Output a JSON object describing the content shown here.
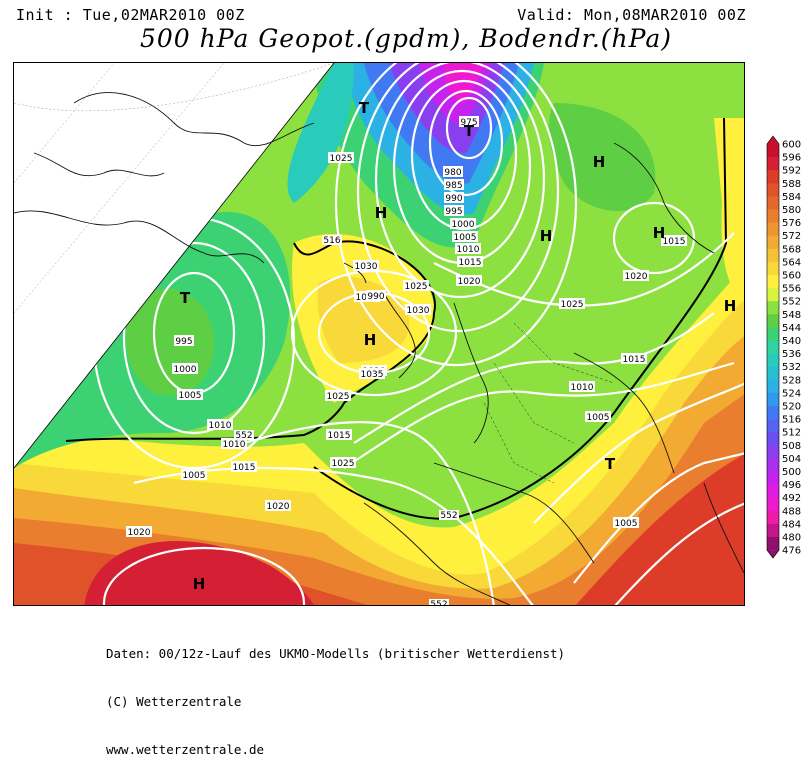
{
  "header": {
    "init": "Init : Tue,02MAR2010 00Z",
    "valid": "Valid: Mon,08MAR2010 00Z",
    "title": "500 hPa Geopot.(gpdm), Bodendr.(hPa)"
  },
  "isobars": [
    "975",
    "980",
    "985",
    "990",
    "995",
    "1000",
    "1005",
    "1010",
    "1015",
    "1020",
    "1025",
    "1030",
    "1035",
    "1020",
    "1025",
    "1015",
    "1010",
    "1005",
    "1020",
    "1025",
    "1030",
    "1035",
    "990",
    "995",
    "1000",
    "1005",
    "1010",
    "1015",
    "1020",
    "1025",
    "1015",
    "1020",
    "1025",
    "1010",
    "1005",
    "1015",
    "1005"
  ],
  "geopot_labels": [
    "516",
    "552",
    "552",
    "552"
  ],
  "pressure_centers": [
    "T",
    "H",
    "T",
    "H",
    "H",
    "H",
    "H",
    "T",
    "T",
    "H",
    "H"
  ],
  "scale": {
    "labels": [
      "600",
      "596",
      "592",
      "588",
      "584",
      "580",
      "576",
      "572",
      "568",
      "564",
      "560",
      "556",
      "552",
      "548",
      "544",
      "540",
      "536",
      "532",
      "528",
      "524",
      "520",
      "516",
      "512",
      "508",
      "504",
      "500",
      "496",
      "492",
      "488",
      "484",
      "480",
      "476"
    ],
    "colors": [
      "#c8102e",
      "#d41f35",
      "#dc3c28",
      "#e0522a",
      "#e4682c",
      "#e97e2f",
      "#ee9431",
      "#f2aa33",
      "#f6c136",
      "#f9d93a",
      "#fff03d",
      "#d9f43e",
      "#8ce040",
      "#5ecf45",
      "#3cd273",
      "#2ed3a0",
      "#29cbbb",
      "#26bfd0",
      "#2bb1e3",
      "#3399ee",
      "#4079f2",
      "#5463f0",
      "#6b4fee",
      "#8a3fee",
      "#a82fee",
      "#c622ee",
      "#e01ce0",
      "#ee1ad0",
      "#ee1aa8",
      "#c2168a",
      "#90106e"
    ]
  },
  "footer": {
    "line1": "Daten: 00/12z-Lauf des UKMO-Modells (britischer Wetterdienst)",
    "line2": "(C) Wetterzentrale",
    "line3": "www.wetterzentrale.de"
  }
}
